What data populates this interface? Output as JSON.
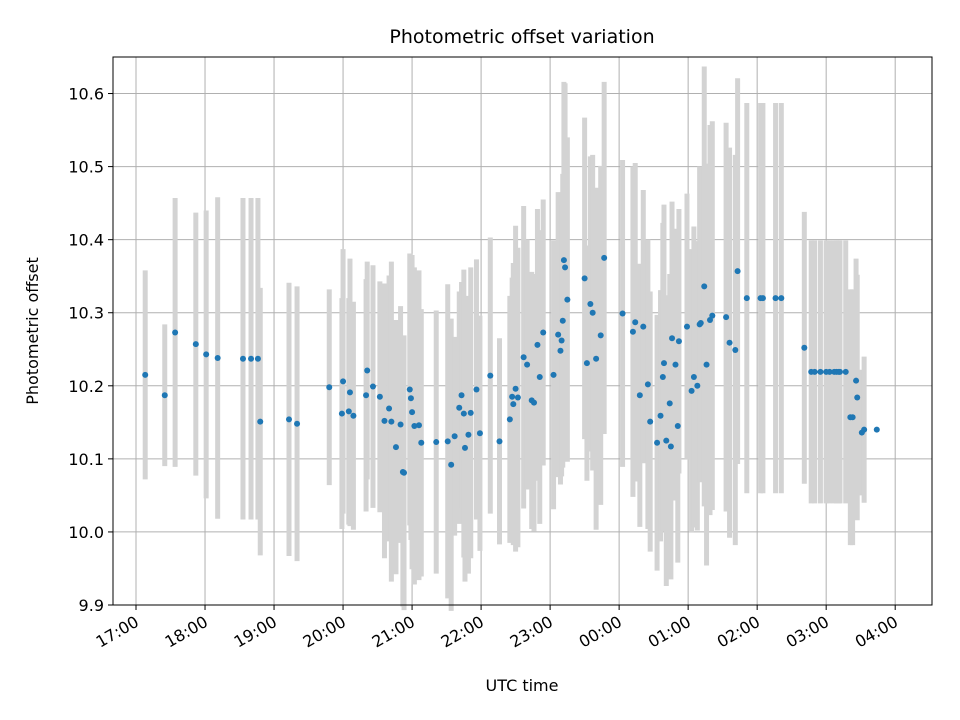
{
  "chart_data": {
    "type": "scatter",
    "title": "Photometric offset variation",
    "xlabel": "UTC time",
    "ylabel": "Photometric offset",
    "xlim": [
      "16:40",
      "04:32"
    ],
    "ylim": [
      9.9,
      10.65
    ],
    "grid": true,
    "x_ticks": [
      "17:00",
      "18:00",
      "19:00",
      "20:00",
      "21:00",
      "22:00",
      "23:00",
      "00:00",
      "01:00",
      "02:00",
      "03:00",
      "04:00"
    ],
    "y_ticks": [
      "9.9",
      "10.0",
      "10.1",
      "10.2",
      "10.3",
      "10.4",
      "10.5",
      "10.6"
    ],
    "colors": {
      "points": "#1f77b4",
      "errorbars": "#d3d3d3"
    },
    "series": [
      {
        "x": [
          "17:08",
          "17:25",
          "17:34",
          "17:52",
          "18:01",
          "18:11",
          "18:33",
          "18:40",
          "18:46",
          "18:48",
          "19:13",
          "19:20",
          "19:48",
          "19:59",
          "20:00",
          "20:05",
          "20:06",
          "20:09",
          "20:20",
          "20:21",
          "20:26",
          "20:32",
          "20:36",
          "20:40",
          "20:42",
          "20:46",
          "20:50",
          "20:52",
          "20:53",
          "20:58",
          "20:59",
          "21:00",
          "21:02",
          "21:06",
          "21:08",
          "21:21",
          "21:31",
          "21:34",
          "21:37",
          "21:41",
          "21:43",
          "21:45",
          "21:46",
          "21:49",
          "21:51",
          "21:56",
          "21:59",
          "22:08",
          "22:16",
          "22:25",
          "22:27",
          "22:28",
          "22:30",
          "22:32",
          "22:37",
          "22:40",
          "22:44",
          "22:46",
          "22:49",
          "22:51",
          "22:54",
          "23:03",
          "23:07",
          "23:09",
          "23:10",
          "23:11",
          "23:12",
          "23:13",
          "23:15",
          "23:30",
          "23:32",
          "23:35",
          "23:37",
          "23:40",
          "23:44",
          "23:47",
          "24:03",
          "24:12",
          "24:14",
          "24:18",
          "24:21",
          "24:25",
          "24:27",
          "24:33",
          "24:36",
          "24:38",
          "24:39",
          "24:41",
          "24:44",
          "24:45",
          "24:46",
          "24:49",
          "24:51",
          "24:52",
          "24:59",
          "25:03",
          "25:05",
          "25:08",
          "25:10",
          "25:11",
          "25:14",
          "25:16",
          "25:19",
          "25:21",
          "25:33",
          "25:36",
          "25:41",
          "25:43",
          "25:51",
          "26:03",
          "26:05",
          "26:16",
          "26:21",
          "26:41",
          "26:47",
          "26:50",
          "26:55",
          "27:00",
          "27:03",
          "27:07",
          "27:09",
          "27:11",
          "27:12",
          "27:17",
          "27:21",
          "27:23",
          "27:26",
          "27:27",
          "27:31",
          "27:33",
          "27:44"
        ],
        "y": [
          10.215,
          10.187,
          10.273,
          10.257,
          10.243,
          10.238,
          10.237,
          10.237,
          10.237,
          10.151,
          10.154,
          10.148,
          10.198,
          10.162,
          10.206,
          10.165,
          10.191,
          10.159,
          10.187,
          10.221,
          10.199,
          10.185,
          10.152,
          10.169,
          10.151,
          10.116,
          10.147,
          10.082,
          10.081,
          10.195,
          10.183,
          10.164,
          10.145,
          10.146,
          10.122,
          10.123,
          10.124,
          10.092,
          10.131,
          10.17,
          10.187,
          10.162,
          10.115,
          10.133,
          10.163,
          10.195,
          10.135,
          10.214,
          10.124,
          10.154,
          10.185,
          10.175,
          10.196,
          10.184,
          10.239,
          10.229,
          10.18,
          10.177,
          10.256,
          10.212,
          10.273,
          10.215,
          10.27,
          10.248,
          10.262,
          10.289,
          10.372,
          10.362,
          10.318,
          10.347,
          10.231,
          10.312,
          10.3,
          10.237,
          10.269,
          10.375,
          10.299,
          10.274,
          10.287,
          10.187,
          10.281,
          10.202,
          10.151,
          10.122,
          10.159,
          10.212,
          10.231,
          10.125,
          10.176,
          10.117,
          10.265,
          10.229,
          10.145,
          10.261,
          10.281,
          10.193,
          10.212,
          10.2,
          10.284,
          10.286,
          10.336,
          10.229,
          10.29,
          10.296,
          10.294,
          10.259,
          10.249,
          10.357,
          10.32,
          10.32,
          10.32,
          10.32,
          10.32,
          10.252,
          10.219,
          10.219,
          10.219,
          10.219,
          10.219,
          10.219,
          10.219,
          10.219,
          10.219,
          10.219,
          10.157,
          10.157,
          10.207,
          10.184,
          10.136,
          10.14,
          10.14
        ],
        "yerr": [
          0.143,
          0.097,
          0.184,
          0.18,
          0.197,
          0.22,
          0.22,
          0.22,
          0.22,
          0.183,
          0.187,
          0.188,
          0.134,
          0.158,
          0.181,
          0.155,
          0.183,
          0.156,
          0.159,
          0.149,
          0.166,
          0.158,
          0.188,
          0.182,
          0.219,
          0.174,
          0.162,
          0.184,
          0.188,
          0.186,
          0.194,
          0.215,
          0.217,
          0.212,
          0.183,
          0.18,
          0.215,
          0.2,
          0.136,
          0.159,
          0.155,
          0.197,
          0.183,
          0.19,
          0.199,
          0.178,
          0.161,
          0.189,
          0.141,
          0.169,
          0.163,
          0.193,
          0.223,
          0.205,
          0.207,
          0.171,
          0.176,
          0.176,
          0.186,
          0.201,
          0.182,
          0.184,
          0.195,
          0.183,
          0.186,
          0.201,
          0.244,
          0.252,
          0.222,
          0.22,
          0.161,
          0.202,
          0.216,
          0.234,
          0.232,
          0.241,
          0.21,
          0.226,
          0.218,
          0.18,
          0.187,
          0.198,
          0.178,
          0.175,
          0.172,
          0.211,
          0.217,
          0.199,
          0.177,
          0.182,
          0.187,
          0.186,
          0.187,
          0.181,
          0.182,
          0.194,
          0.206,
          0.198,
          0.216,
          0.2,
          0.301,
          0.275,
          0.267,
          0.266,
          0.266,
          0.267,
          0.267,
          0.264,
          0.267,
          0.267,
          0.267,
          0.267,
          0.267,
          0.186,
          0.18,
          0.18,
          0.18,
          0.18,
          0.18,
          0.18,
          0.18,
          0.18,
          0.18,
          0.18,
          0.175,
          0.175,
          0.167,
          0.168,
          0.086,
          0.1,
          0.0
        ]
      }
    ]
  }
}
